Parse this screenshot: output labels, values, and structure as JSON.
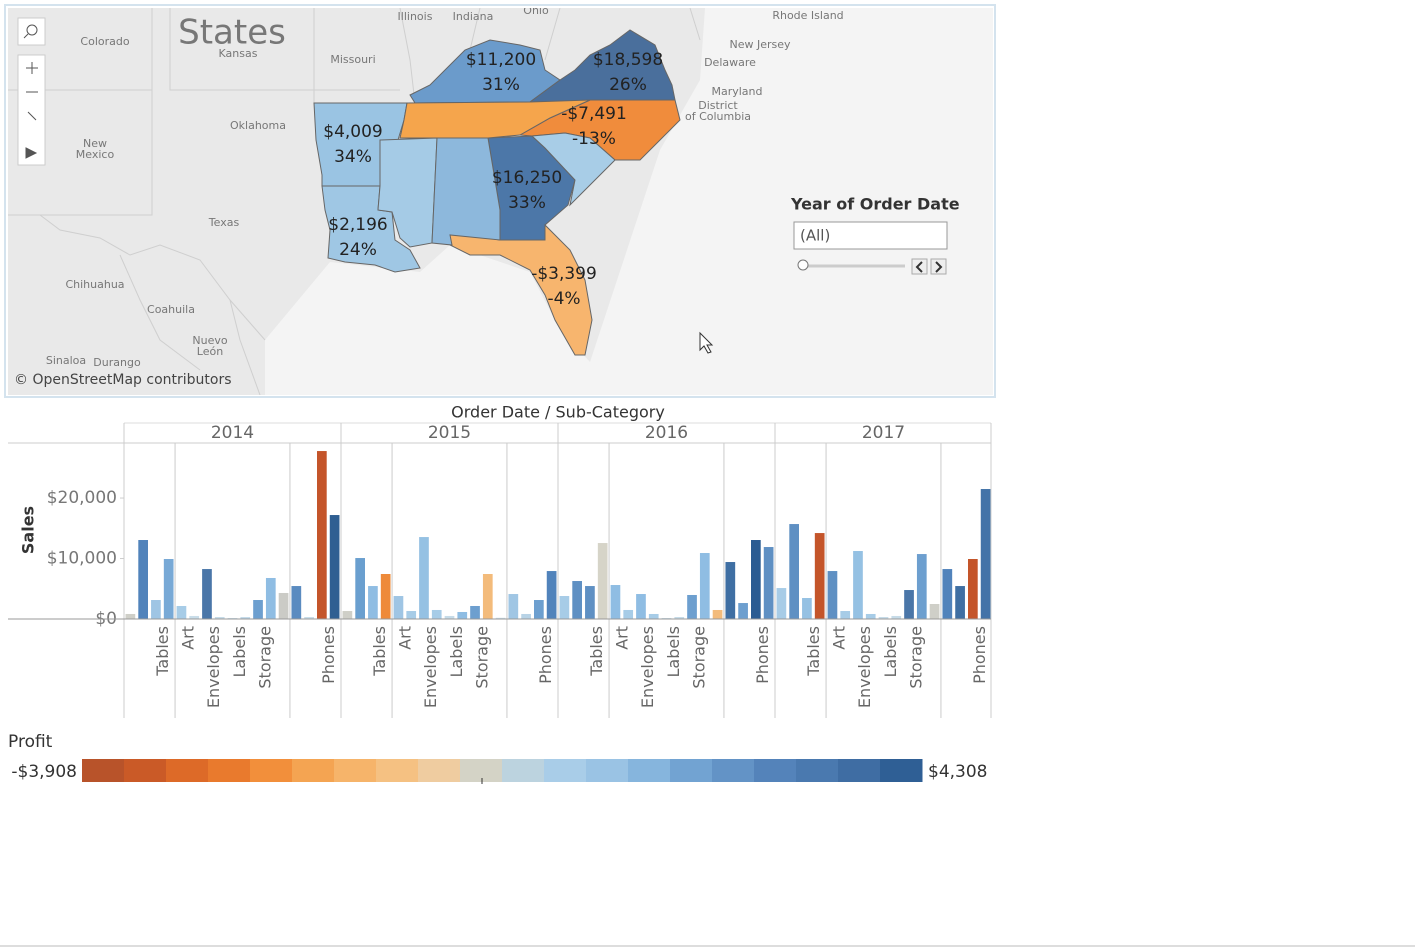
{
  "map": {
    "places": [
      "States",
      "Colorado",
      "Kansas",
      "Missouri",
      "Illinois",
      "Indiana",
      "Ohio",
      "Rhode Island",
      "New Jersey",
      "Delaware",
      "Maryland",
      "District",
      "of Columbia",
      "Oklahoma",
      "New",
      "Mexico",
      "Texas",
      "Chihuahua",
      "Coahuila",
      "Nuevo",
      "León",
      "Sinaloa",
      "Durango"
    ],
    "states": [
      {
        "color": "#6b9bcb",
        "sales": "$11,200",
        "share": "31%"
      },
      {
        "color": "#4a6f9c",
        "sales": "$18,598",
        "share": "26%"
      },
      {
        "color": "#9ac4e3",
        "sales": "$4,009",
        "share": "34%"
      },
      {
        "color": "#f08c3c",
        "sales": "-$7,491",
        "share": "-13%"
      },
      {
        "color": "#4c77a8",
        "sales": "$16,250",
        "share": "33%"
      },
      {
        "color": "#9fc7e4",
        "sales": "$2,196",
        "share": "24%"
      },
      {
        "color": "#f7b56e",
        "sales": "-$3,399",
        "share": "-4%"
      },
      {
        "color": "#f5a54c"
      },
      {
        "color": "#a5cbe6"
      },
      {
        "color": "#8db8dc"
      },
      {
        "color": "#a8cde7"
      }
    ],
    "attribution": "© OpenStreetMap contributors"
  },
  "filter": {
    "title": "Year of Order Date",
    "value": "(All)"
  },
  "chart_data": {
    "type": "bar",
    "title": "Order Date / Sub-Category",
    "y_label": "Sales",
    "categories": [
      null,
      null,
      null,
      "Tables",
      null,
      "Art",
      null,
      "Envelopes",
      null,
      "Labels",
      null,
      "Storage",
      null,
      null,
      null,
      null,
      "Phones"
    ],
    "panels": [
      {
        "name": "2014",
        "values": [
          830,
          13060,
          3140,
          9920,
          2150,
          500,
          8260,
          330,
          160,
          300,
          3140,
          6780,
          4300,
          5450,
          330,
          27770,
          17190
        ],
        "colors": [
          "#cfcfc8",
          "#5183bb",
          "#9fc5e4",
          "#78a9d6",
          "#a7cce7",
          "#c9dde9",
          "#4a76a8",
          "#c6dbe8",
          "#c6dbe8",
          "#b8d3e6",
          "#6d9fcf",
          "#8fbde3",
          "#cbcbc6",
          "#5a8bc0",
          "#c9dde9",
          "#c4552a",
          "#2f5f92"
        ]
      },
      {
        "name": "2015",
        "values": [
          1320,
          10080,
          5450,
          7440,
          3800,
          1320,
          13550,
          1490,
          500,
          1160,
          2150,
          7440,
          200,
          4130,
          830,
          3140,
          7930
        ],
        "colors": [
          "#cfcfc8",
          "#6a9fcf",
          "#8fbde3",
          "#ee8a3a",
          "#9fc5e4",
          "#a7cce7",
          "#95c1e3",
          "#a7cce7",
          "#c6dbe8",
          "#8fbde3",
          "#6d9fcf",
          "#f3bb7b",
          "#c9dde9",
          "#a0c6e4",
          "#b8d3e6",
          "#6d9fcf",
          "#5183bb"
        ]
      },
      {
        "name": "2016",
        "values": [
          3800,
          6280,
          5450,
          12560,
          5620,
          1490,
          4130,
          830,
          160,
          330,
          3970,
          10910,
          1490,
          9420,
          2640,
          13060,
          11900
        ],
        "colors": [
          "#a7cce7",
          "#5f90c3",
          "#5f90c3",
          "#d6d4c8",
          "#8fbde3",
          "#a7cce7",
          "#8fbde3",
          "#a7cce7",
          "#c6dbe8",
          "#c6dbe8",
          "#6d9fcf",
          "#8fbde3",
          "#f3bb7b",
          "#3f6fa3",
          "#6d9fcf",
          "#2a5b92",
          "#5f90c3"
        ]
      },
      {
        "name": "2017",
        "values": [
          5120,
          15700,
          3470,
          14210,
          7930,
          1320,
          11240,
          830,
          330,
          500,
          4790,
          10740,
          2480,
          8260,
          5450,
          9920,
          21490
        ],
        "colors": [
          "#a7cce7",
          "#5f90c3",
          "#95c1e3",
          "#c4552a",
          "#5f90c3",
          "#a7cce7",
          "#95c1e3",
          "#a7cce7",
          "#c6dbe8",
          "#c6dbe8",
          "#4a76a8",
          "#6d9fcf",
          "#cfcfc8",
          "#5183bb",
          "#3f6fa3",
          "#c4552a",
          "#4373a8"
        ]
      }
    ],
    "ylim": [
      0,
      29100
    ],
    "yticks": [
      {
        "value": 0,
        "label": "$0"
      },
      {
        "value": 10000,
        "label": "$10,000"
      },
      {
        "value": 20000,
        "label": "$20,000"
      }
    ]
  },
  "legend": {
    "title": "Profit",
    "min_label": "-$3,908",
    "max_label": "$4,308",
    "colors": [
      "#b8532a",
      "#ca5a27",
      "#dd6a28",
      "#e97a2d",
      "#f28f3b",
      "#f4a452",
      "#f6b46a",
      "#f5c182",
      "#efcca0",
      "#d4d3c6",
      "#bcd3df",
      "#a9cde8",
      "#9ac3e4",
      "#86b5dd",
      "#72a3d2",
      "#6393c6",
      "#5483ba",
      "#4a79af",
      "#3f6da3",
      "#2f5f95"
    ]
  }
}
